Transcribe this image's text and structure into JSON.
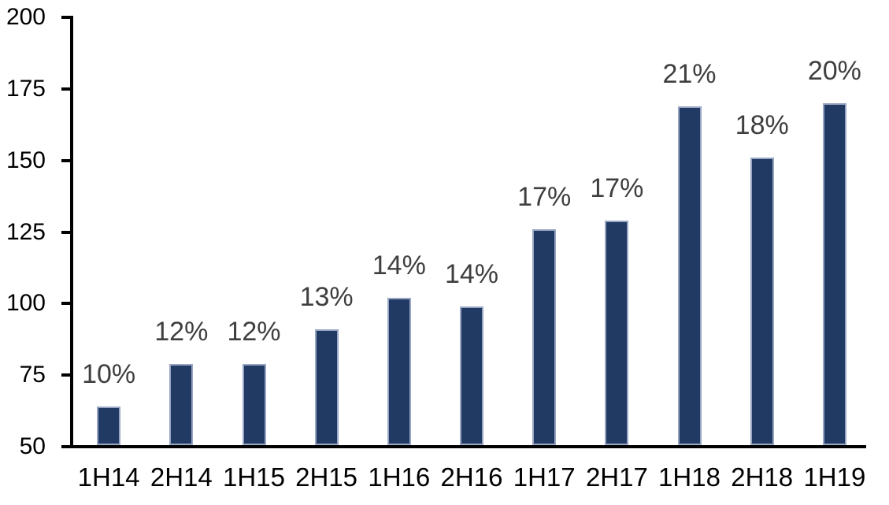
{
  "chart_data": {
    "type": "bar",
    "title": "",
    "xlabel": "",
    "ylabel": "",
    "categories": [
      "1H14",
      "2H14",
      "1H15",
      "2H15",
      "1H16",
      "2H16",
      "1H17",
      "2H17",
      "1H18",
      "2H18",
      "1H19"
    ],
    "values": [
      64,
      79,
      79,
      91,
      102,
      99,
      126,
      129,
      169,
      151,
      170
    ],
    "bar_labels": [
      "10%",
      "12%",
      "12%",
      "13%",
      "14%",
      "14%",
      "17%",
      "17%",
      "21%",
      "18%",
      "20%"
    ],
    "ylim": [
      50,
      200
    ],
    "yticks": [
      50,
      75,
      100,
      125,
      150,
      175,
      200
    ],
    "ytick_labels": [
      "50",
      "75",
      "100",
      "125",
      "150",
      "175",
      "200"
    ],
    "grid": false,
    "legend_position": "none",
    "colors": {
      "bar_fill": "#213a63",
      "bar_border": "#98a6c3",
      "data_label": "#3f3f3f",
      "axis_text": "#000000",
      "axis_line": "#000000",
      "background": "#ffffff"
    }
  }
}
